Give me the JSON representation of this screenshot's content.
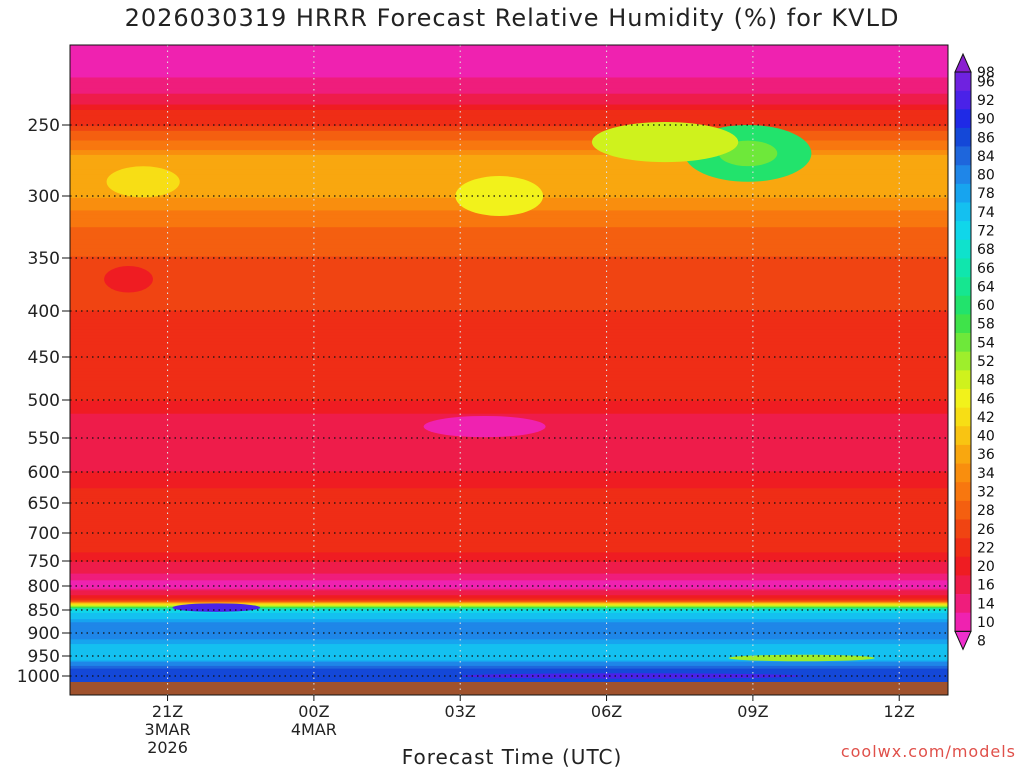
{
  "chart_data": {
    "type": "heatmap",
    "title": "2026030319 HRRR Forecast Relative Humidity (%) for KVLD",
    "xlabel": "Forecast Time (UTC)",
    "ylabel": "",
    "x_hours": [
      0,
      1,
      2,
      3,
      4,
      5,
      6,
      7,
      8,
      9,
      10,
      11,
      12,
      13,
      14,
      15,
      16,
      17,
      18
    ],
    "x_ticks": [
      {
        "hour": 2,
        "lines": [
          "21Z",
          "3MAR",
          "2026"
        ]
      },
      {
        "hour": 5,
        "lines": [
          "00Z",
          "4MAR"
        ]
      },
      {
        "hour": 8,
        "lines": [
          "03Z"
        ]
      },
      {
        "hour": 11,
        "lines": [
          "06Z"
        ]
      },
      {
        "hour": 14,
        "lines": [
          "09Z"
        ]
      },
      {
        "hour": 17,
        "lines": [
          "12Z"
        ]
      }
    ],
    "xlim": [
      0,
      18
    ],
    "pressure_levels": [
      200,
      250,
      300,
      350,
      400,
      450,
      500,
      550,
      600,
      650,
      700,
      750,
      800,
      850,
      900,
      950,
      1000
    ],
    "y_ticks": [
      250,
      300,
      350,
      400,
      450,
      500,
      550,
      600,
      650,
      700,
      750,
      800,
      850,
      900,
      950,
      1000
    ],
    "ylim": [
      200,
      1012
    ],
    "profile_levels": [
      200,
      230,
      250,
      275,
      300,
      350,
      400,
      450,
      500,
      550,
      600,
      650,
      700,
      750,
      800,
      830,
      850,
      875,
      900,
      950,
      980,
      1000,
      1012
    ],
    "profile_rh": [
      10,
      16,
      26,
      38,
      36,
      28,
      26,
      24,
      22,
      16,
      20,
      24,
      26,
      20,
      12,
      24,
      72,
      80,
      82,
      74,
      86,
      88,
      88
    ],
    "anomalies": [
      {
        "hour": 13.9,
        "level": 270,
        "rh": 62,
        "width_hours": 2.6,
        "height_levels": 40
      },
      {
        "hour": 13.9,
        "level": 270,
        "rh": 56,
        "width_hours": 1.2,
        "height_levels": 18
      },
      {
        "hour": 12.2,
        "level": 262,
        "rh": 50,
        "width_hours": 3.0,
        "height_levels": 28
      },
      {
        "hour": 1.5,
        "level": 290,
        "rh": 44,
        "width_hours": 1.5,
        "height_levels": 22
      },
      {
        "hour": 8.8,
        "level": 300,
        "rh": 46,
        "width_hours": 1.8,
        "height_levels": 30
      },
      {
        "hour": 1.2,
        "level": 370,
        "rh": 20,
        "width_hours": 1.0,
        "height_levels": 25
      },
      {
        "hour": 8.5,
        "level": 535,
        "rh": 12,
        "width_hours": 2.5,
        "height_levels": 28
      },
      {
        "hour": 3.0,
        "level": 845,
        "rh": 92,
        "width_hours": 1.8,
        "height_levels": 18
      },
      {
        "hour": 15.0,
        "level": 955,
        "rh": 52,
        "width_hours": 3.0,
        "height_levels": 16
      },
      {
        "hour": 11.5,
        "level": 1000,
        "rh": 94,
        "width_hours": 7.0,
        "height_levels": 12
      }
    ],
    "colorbar": {
      "labels": [
        98,
        96,
        92,
        90,
        86,
        84,
        80,
        78,
        74,
        72,
        68,
        66,
        64,
        60,
        58,
        54,
        52,
        48,
        46,
        42,
        40,
        36,
        34,
        32,
        28,
        26,
        22,
        20,
        16,
        14,
        10,
        8
      ],
      "colors": [
        "#8a1fd0",
        "#6f22e0",
        "#4a22e8",
        "#1f2ae6",
        "#1448d8",
        "#1e66dc",
        "#1f86e8",
        "#17a4ef",
        "#14c0f0",
        "#10d6ea",
        "#0fe2cc",
        "#10e6ad",
        "#16e690",
        "#22e36c",
        "#3fe34a",
        "#6ee83a",
        "#9eee2c",
        "#cff21d",
        "#f2f21b",
        "#f7de15",
        "#f9c412",
        "#f9a70f",
        "#f98e0e",
        "#f8770f",
        "#f45f10",
        "#f04412",
        "#ef2d16",
        "#ef1c22",
        "#ee1c4a",
        "#ef1d7c",
        "#ef22b0",
        "#ee2fcc"
      ]
    },
    "ground_color": "#a0522d"
  },
  "credit": "coolwx.com/models"
}
